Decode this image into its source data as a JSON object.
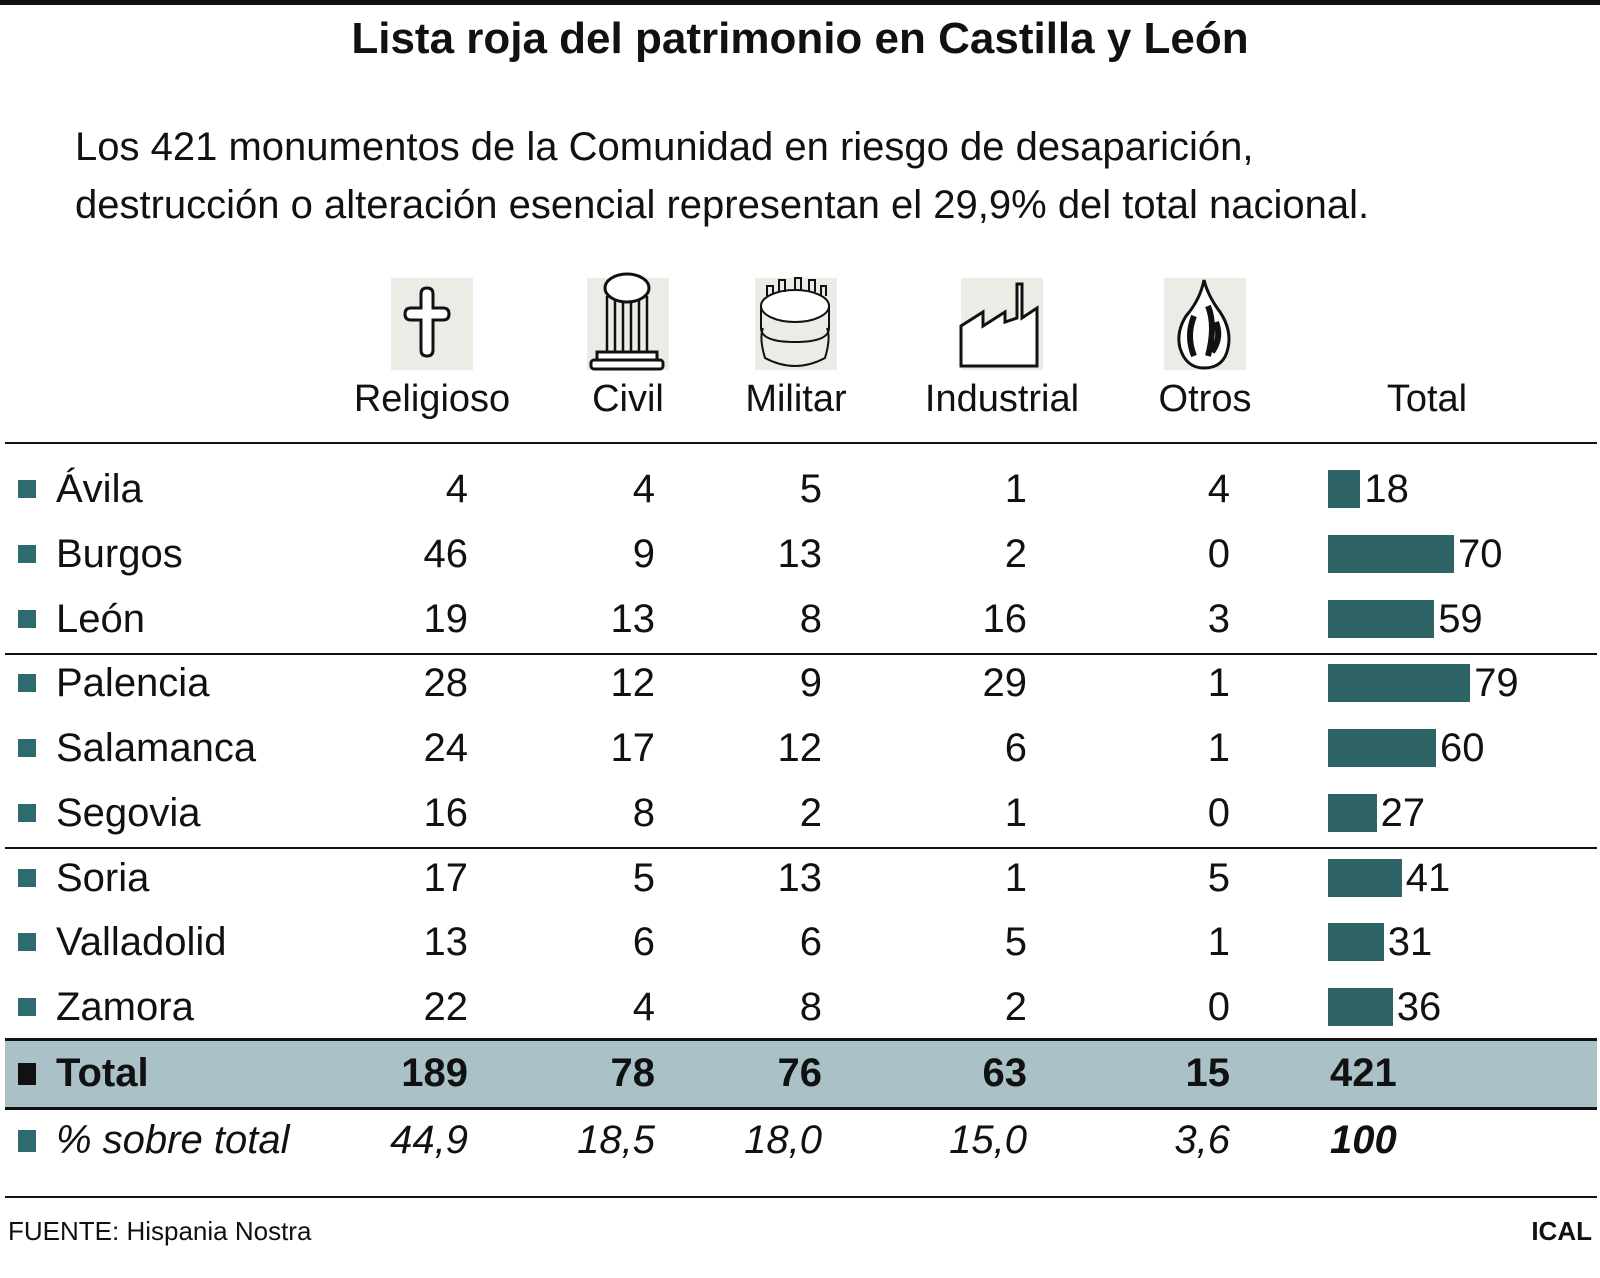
{
  "title": "Lista roja del patrimonio en Castilla y León",
  "subtitle_lines": [
    "Los 421 monumentos de la Comunidad en riesgo de desaparición,",
    "destrucción o alteración esencial representan el 29,9% del total nacional."
  ],
  "colors": {
    "bar": "#2e6466",
    "marker": "#2e6b6e",
    "total_band": "#aac1c8",
    "icon_bg": "#ecebe6"
  },
  "chart_data": {
    "type": "table",
    "columns": [
      {
        "label": "Religioso",
        "icon": "cross-icon"
      },
      {
        "label": "Civil",
        "icon": "column-icon"
      },
      {
        "label": "Militar",
        "icon": "tower-icon"
      },
      {
        "label": "Industrial",
        "icon": "factory-icon"
      },
      {
        "label": "Otros",
        "icon": "flame-icon"
      },
      {
        "label": "Total",
        "icon": ""
      }
    ],
    "rows": [
      {
        "name": "Ávila",
        "values": [
          "4",
          "4",
          "5",
          "1",
          "4"
        ],
        "total": 18
      },
      {
        "name": "Burgos",
        "values": [
          "46",
          "9",
          "13",
          "2",
          "0"
        ],
        "total": 70
      },
      {
        "name": "León",
        "values": [
          "19",
          "13",
          "8",
          "16",
          "3"
        ],
        "total": 59
      },
      {
        "name": "Palencia",
        "values": [
          "28",
          "12",
          "9",
          "29",
          "1"
        ],
        "total": 79
      },
      {
        "name": "Salamanca",
        "values": [
          "24",
          "17",
          "12",
          "6",
          "1"
        ],
        "total": 60
      },
      {
        "name": "Segovia",
        "values": [
          "16",
          "8",
          "2",
          "1",
          "0"
        ],
        "total": 27
      },
      {
        "name": "Soria",
        "values": [
          "17",
          "5",
          "13",
          "1",
          "5"
        ],
        "total": 41
      },
      {
        "name": "Valladolid",
        "values": [
          "13",
          "6",
          "6",
          "5",
          "1"
        ],
        "total": 31
      },
      {
        "name": "Zamora",
        "values": [
          "22",
          "4",
          "8",
          "2",
          "0"
        ],
        "total": 36
      }
    ],
    "total_row": {
      "name": "Total",
      "values": [
        "189",
        "78",
        "76",
        "63",
        "15",
        "421"
      ]
    },
    "percent_row": {
      "name": "% sobre total",
      "values": [
        "44,9",
        "18,5",
        "18,0",
        "15,0",
        "3,6",
        "100"
      ]
    }
  },
  "footer": {
    "source": "FUENTE: Hispania Nostra",
    "agency": "ICAL"
  }
}
